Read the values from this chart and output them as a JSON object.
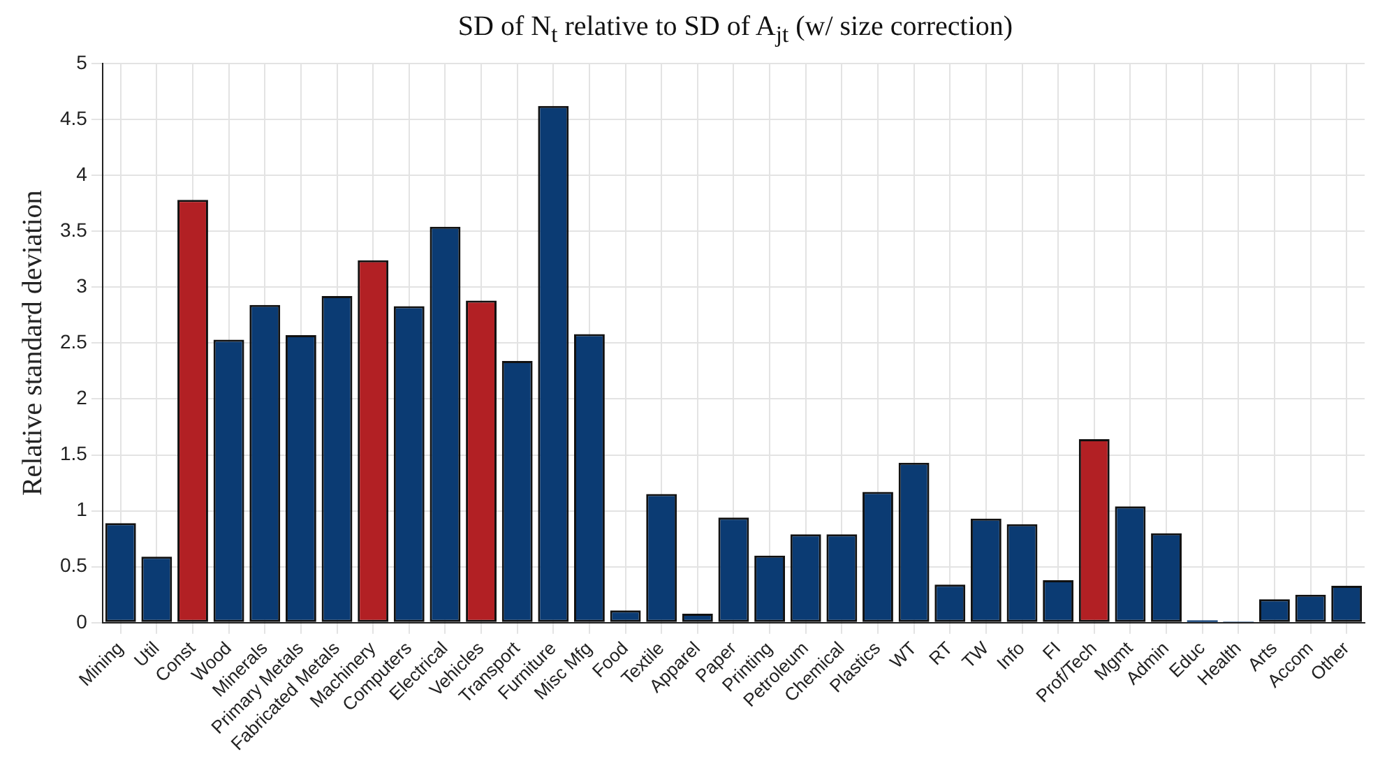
{
  "chart_data": {
    "type": "bar",
    "title": "SD of N$_{t}$ relative to SD of A$_{jt}$ (w/ size correction)",
    "ylabel": "Relative standard deviation",
    "categories": [
      "Mining",
      "Util",
      "Const",
      "Wood",
      "Minerals",
      "Primary Metals",
      "Fabricated Metals",
      "Machinery",
      "Computers",
      "Electrical",
      "Vehicles",
      "Transport",
      "Furniture",
      "Misc Mfg",
      "Food",
      "Textile",
      "Apparel",
      "Paper",
      "Printing",
      "Petroleum",
      "Chemical",
      "Plastics",
      "WT",
      "RT",
      "TW",
      "Info",
      "FI",
      "Prof/Tech",
      "Mgmt",
      "Admin",
      "Educ",
      "Health",
      "Arts",
      "Accom",
      "Other"
    ],
    "values": [
      0.89,
      0.59,
      3.78,
      2.53,
      2.84,
      2.57,
      2.92,
      3.24,
      2.83,
      3.54,
      2.88,
      2.34,
      4.62,
      2.58,
      0.11,
      1.15,
      0.08,
      0.94,
      0.6,
      0.79,
      0.79,
      1.17,
      1.43,
      0.34,
      0.93,
      0.88,
      0.38,
      1.64,
      1.04,
      0.8,
      0.02,
      0.01,
      0.21,
      0.25,
      0.33
    ],
    "colors": [
      "#0b3b73",
      "#0b3b73",
      "#b22024",
      "#0b3b73",
      "#0b3b73",
      "#0b3b73",
      "#0b3b73",
      "#b22024",
      "#0b3b73",
      "#0b3b73",
      "#b22024",
      "#0b3b73",
      "#0b3b73",
      "#0b3b73",
      "#0b3b73",
      "#0b3b73",
      "#0b3b73",
      "#0b3b73",
      "#0b3b73",
      "#0b3b73",
      "#0b3b73",
      "#0b3b73",
      "#0b3b73",
      "#0b3b73",
      "#0b3b73",
      "#0b3b73",
      "#0b3b73",
      "#b22024",
      "#0b3b73",
      "#0b3b73",
      "#0b3b73",
      "#0b3b73",
      "#0b3b73",
      "#0b3b73",
      "#0b3b73"
    ],
    "ylim": [
      0,
      5
    ],
    "yticks": [
      0,
      0.5,
      1,
      1.5,
      2,
      2.5,
      3,
      3.5,
      4,
      4.5,
      5
    ],
    "grid": true,
    "legend": false
  }
}
